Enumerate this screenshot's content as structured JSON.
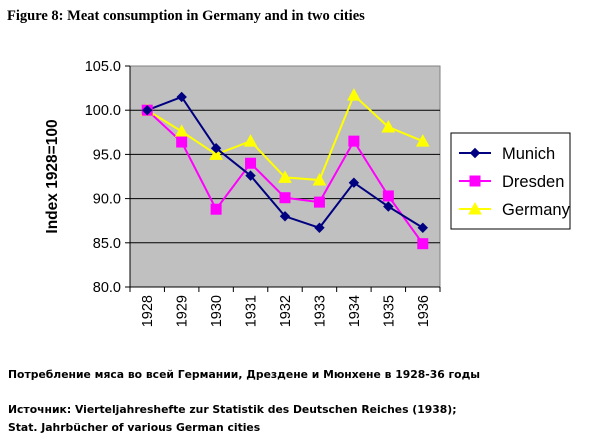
{
  "figure_title": "Figure 8: Meat consumption in Germany and in two cities",
  "caption_ru": "Потребление мяса во всей Германии, Дрездене и Мюнхене в 1928-36 годы",
  "source_line1": "Источник: Vierteljahreshefte zur Statistik des Deutschen Reiches (1938);",
  "source_line2": "Stat. Jahrbücher of various German cities",
  "chart_data": {
    "type": "line",
    "title": "",
    "xlabel": "",
    "ylabel": "Index 1928=100",
    "ylim": [
      80,
      105
    ],
    "y_ticks": [
      "80.0",
      "85.0",
      "90.0",
      "95.0",
      "100.0",
      "105.0"
    ],
    "categories": [
      "1928",
      "1929",
      "1930",
      "1931",
      "1932",
      "1933",
      "1934",
      "1935",
      "1936"
    ],
    "grid": true,
    "legend_position": "right",
    "series": [
      {
        "name": "Munich",
        "color": "#000080",
        "marker": "diamond",
        "values": [
          100.0,
          101.5,
          95.7,
          92.6,
          88.0,
          86.7,
          91.8,
          89.1,
          86.7
        ]
      },
      {
        "name": "Dresden",
        "color": "#ff00ff",
        "marker": "square",
        "values": [
          100.0,
          96.4,
          88.8,
          94.0,
          90.1,
          89.6,
          96.5,
          90.3,
          84.9
        ]
      },
      {
        "name": "Germany",
        "color": "#ffff00",
        "marker": "triangle",
        "values": [
          100.0,
          97.6,
          95.0,
          96.5,
          92.4,
          92.1,
          101.7,
          98.1,
          96.5
        ]
      }
    ]
  }
}
